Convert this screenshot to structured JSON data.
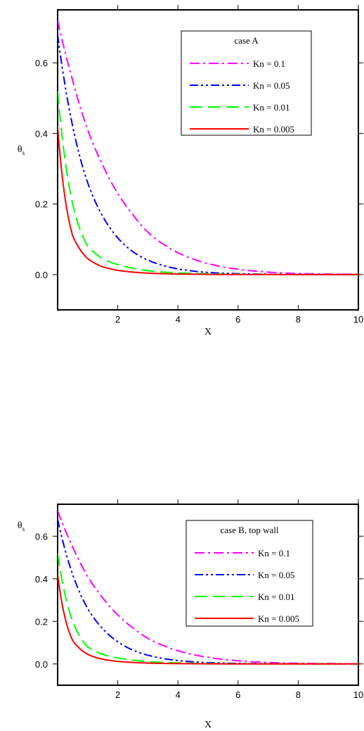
{
  "chart_data": [
    {
      "type": "line",
      "legend_title": "case A",
      "xlabel": "X",
      "ylabel": "θs",
      "xlim": [
        0,
        10
      ],
      "ylim": [
        -0.1,
        0.75
      ],
      "xticks": [
        2,
        4,
        6,
        8,
        10
      ],
      "xtick_labels": [
        "2",
        "4",
        "6",
        "8",
        "10"
      ],
      "yticks": [
        0.0,
        0.2,
        0.4,
        0.6
      ],
      "ytick_labels": [
        "0.0",
        "0.2",
        "0.4",
        "0.6"
      ],
      "legend_position": "top-right",
      "x": [
        0,
        0.5,
        1,
        1.5,
        2,
        2.5,
        3,
        3.5,
        4,
        4.5,
        5,
        6,
        7,
        8,
        9,
        10
      ],
      "series": [
        {
          "name": "Kn = 0.1",
          "color": "#ff00ff",
          "dash": "dash-dot",
          "values": [
            0.72,
            0.55,
            0.41,
            0.31,
            0.23,
            0.17,
            0.12,
            0.087,
            0.062,
            0.044,
            0.031,
            0.015,
            0.007,
            0.003,
            0.0015,
            0.0007
          ]
        },
        {
          "name": "Kn = 0.05",
          "color": "#0000ff",
          "dash": "dash-dot-dot",
          "values": [
            0.68,
            0.42,
            0.26,
            0.165,
            0.104,
            0.065,
            0.041,
            0.026,
            0.016,
            0.01,
            0.006,
            0.0025,
            0.001,
            0.0004,
            0.0002,
            0.0001
          ]
        },
        {
          "name": "Kn = 0.01",
          "color": "#00ff00",
          "dash": "long-dash",
          "values": [
            0.52,
            0.2,
            0.08,
            0.045,
            0.028,
            0.018,
            0.011,
            0.007,
            0.005,
            0.003,
            0.002,
            0.001,
            0.0005,
            0.0003,
            0.0001,
            0.0
          ]
        },
        {
          "name": "Kn = 0.005",
          "color": "#ff0000",
          "dash": "solid",
          "values": [
            0.42,
            0.11,
            0.045,
            0.022,
            0.012,
            0.007,
            0.004,
            0.0025,
            0.0015,
            0.001,
            0.0006,
            0.0002,
            0.0001,
            0.0,
            0.0,
            0.0
          ]
        }
      ]
    },
    {
      "type": "line",
      "legend_title": "case B, top wall",
      "xlabel": "X",
      "ylabel": "θs",
      "xlim": [
        0,
        10
      ],
      "ylim": [
        -0.1,
        0.75
      ],
      "xticks": [
        2,
        4,
        6,
        8,
        10
      ],
      "xtick_labels": [
        "2",
        "4",
        "6",
        "8",
        "10"
      ],
      "yticks": [
        0.0,
        0.2,
        0.4,
        0.6
      ],
      "ytick_labels": [
        "0.0",
        "0.2",
        "0.4",
        "0.6"
      ],
      "legend_position": "top-right",
      "x": [
        0,
        0.5,
        1,
        1.5,
        2,
        2.5,
        3,
        3.5,
        4,
        4.5,
        5,
        6,
        7,
        8,
        9,
        10
      ],
      "series": [
        {
          "name": "Kn = 0.1",
          "color": "#ff00ff",
          "dash": "dash-dot",
          "values": [
            0.72,
            0.55,
            0.41,
            0.31,
            0.23,
            0.17,
            0.12,
            0.087,
            0.062,
            0.044,
            0.031,
            0.015,
            0.007,
            0.003,
            0.0015,
            0.0007
          ]
        },
        {
          "name": "Kn = 0.05",
          "color": "#0000ff",
          "dash": "dash-dot-dot",
          "values": [
            0.68,
            0.42,
            0.26,
            0.165,
            0.104,
            0.065,
            0.041,
            0.026,
            0.016,
            0.01,
            0.006,
            0.0025,
            0.001,
            0.0004,
            0.0002,
            0.0001
          ]
        },
        {
          "name": "Kn = 0.01",
          "color": "#00ff00",
          "dash": "long-dash",
          "values": [
            0.52,
            0.2,
            0.08,
            0.045,
            0.028,
            0.018,
            0.011,
            0.007,
            0.005,
            0.003,
            0.002,
            0.001,
            0.0005,
            0.0003,
            0.0001,
            0.0
          ]
        },
        {
          "name": "Kn = 0.005",
          "color": "#ff0000",
          "dash": "solid",
          "values": [
            0.42,
            0.11,
            0.045,
            0.022,
            0.012,
            0.007,
            0.004,
            0.0025,
            0.0015,
            0.001,
            0.0006,
            0.0002,
            0.0001,
            0.0,
            0.0,
            0.0
          ]
        }
      ]
    }
  ]
}
